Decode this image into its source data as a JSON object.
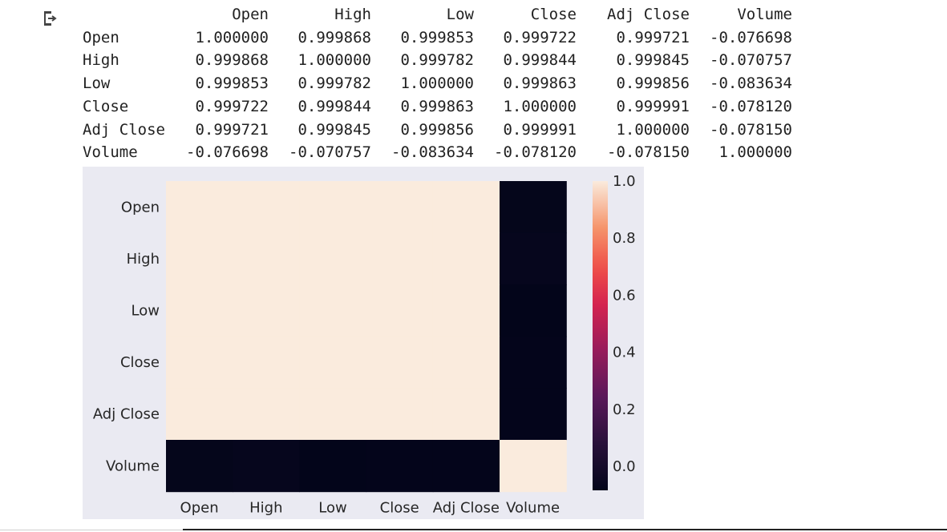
{
  "output": {
    "icon": "output-arrow-icon"
  },
  "table": {
    "columns": [
      "Open",
      "High",
      "Low",
      "Close",
      "Adj Close",
      "Volume"
    ],
    "rows": [
      {
        "label": "Open",
        "values": [
          "1.000000",
          "0.999868",
          "0.999853",
          "0.999722",
          "0.999721",
          "-0.076698"
        ]
      },
      {
        "label": "High",
        "values": [
          "0.999868",
          "1.000000",
          "0.999782",
          "0.999844",
          "0.999845",
          "-0.070757"
        ]
      },
      {
        "label": "Low",
        "values": [
          "0.999853",
          "0.999782",
          "1.000000",
          "0.999863",
          "0.999856",
          "-0.083634"
        ]
      },
      {
        "label": "Close",
        "values": [
          "0.999722",
          "0.999844",
          "0.999863",
          "1.000000",
          "0.999991",
          "-0.078120"
        ]
      },
      {
        "label": "Adj Close",
        "values": [
          "0.999721",
          "0.999845",
          "0.999856",
          "0.999991",
          "1.000000",
          "-0.078150"
        ]
      },
      {
        "label": "Volume",
        "values": [
          "-0.076698",
          "-0.070757",
          "-0.083634",
          "-0.078120",
          "-0.078150",
          "1.000000"
        ]
      }
    ]
  },
  "chart_data": {
    "type": "heatmap",
    "x_categories": [
      "Open",
      "High",
      "Low",
      "Close",
      "Adj Close",
      "Volume"
    ],
    "y_categories": [
      "Open",
      "High",
      "Low",
      "Close",
      "Adj Close",
      "Volume"
    ],
    "values": [
      [
        1.0,
        0.999868,
        0.999853,
        0.999722,
        0.999721,
        -0.076698
      ],
      [
        0.999868,
        1.0,
        0.999782,
        0.999844,
        0.999845,
        -0.070757
      ],
      [
        0.999853,
        0.999782,
        1.0,
        0.999863,
        0.999856,
        -0.083634
      ],
      [
        0.999722,
        0.999844,
        0.999863,
        1.0,
        0.999991,
        -0.07812
      ],
      [
        0.999721,
        0.999845,
        0.999856,
        0.999991,
        1.0,
        -0.07815
      ],
      [
        -0.076698,
        -0.070757,
        -0.083634,
        -0.07812,
        -0.07815,
        1.0
      ]
    ],
    "colorbar": {
      "vmin": -0.083634,
      "vmax": 1.0,
      "ticks": [
        "1.0",
        "0.8",
        "0.6",
        "0.4",
        "0.2",
        "0.0"
      ],
      "colormap": "rocket"
    },
    "title": "",
    "xlabel": "",
    "ylabel": "",
    "background": "#eaeaf2"
  }
}
